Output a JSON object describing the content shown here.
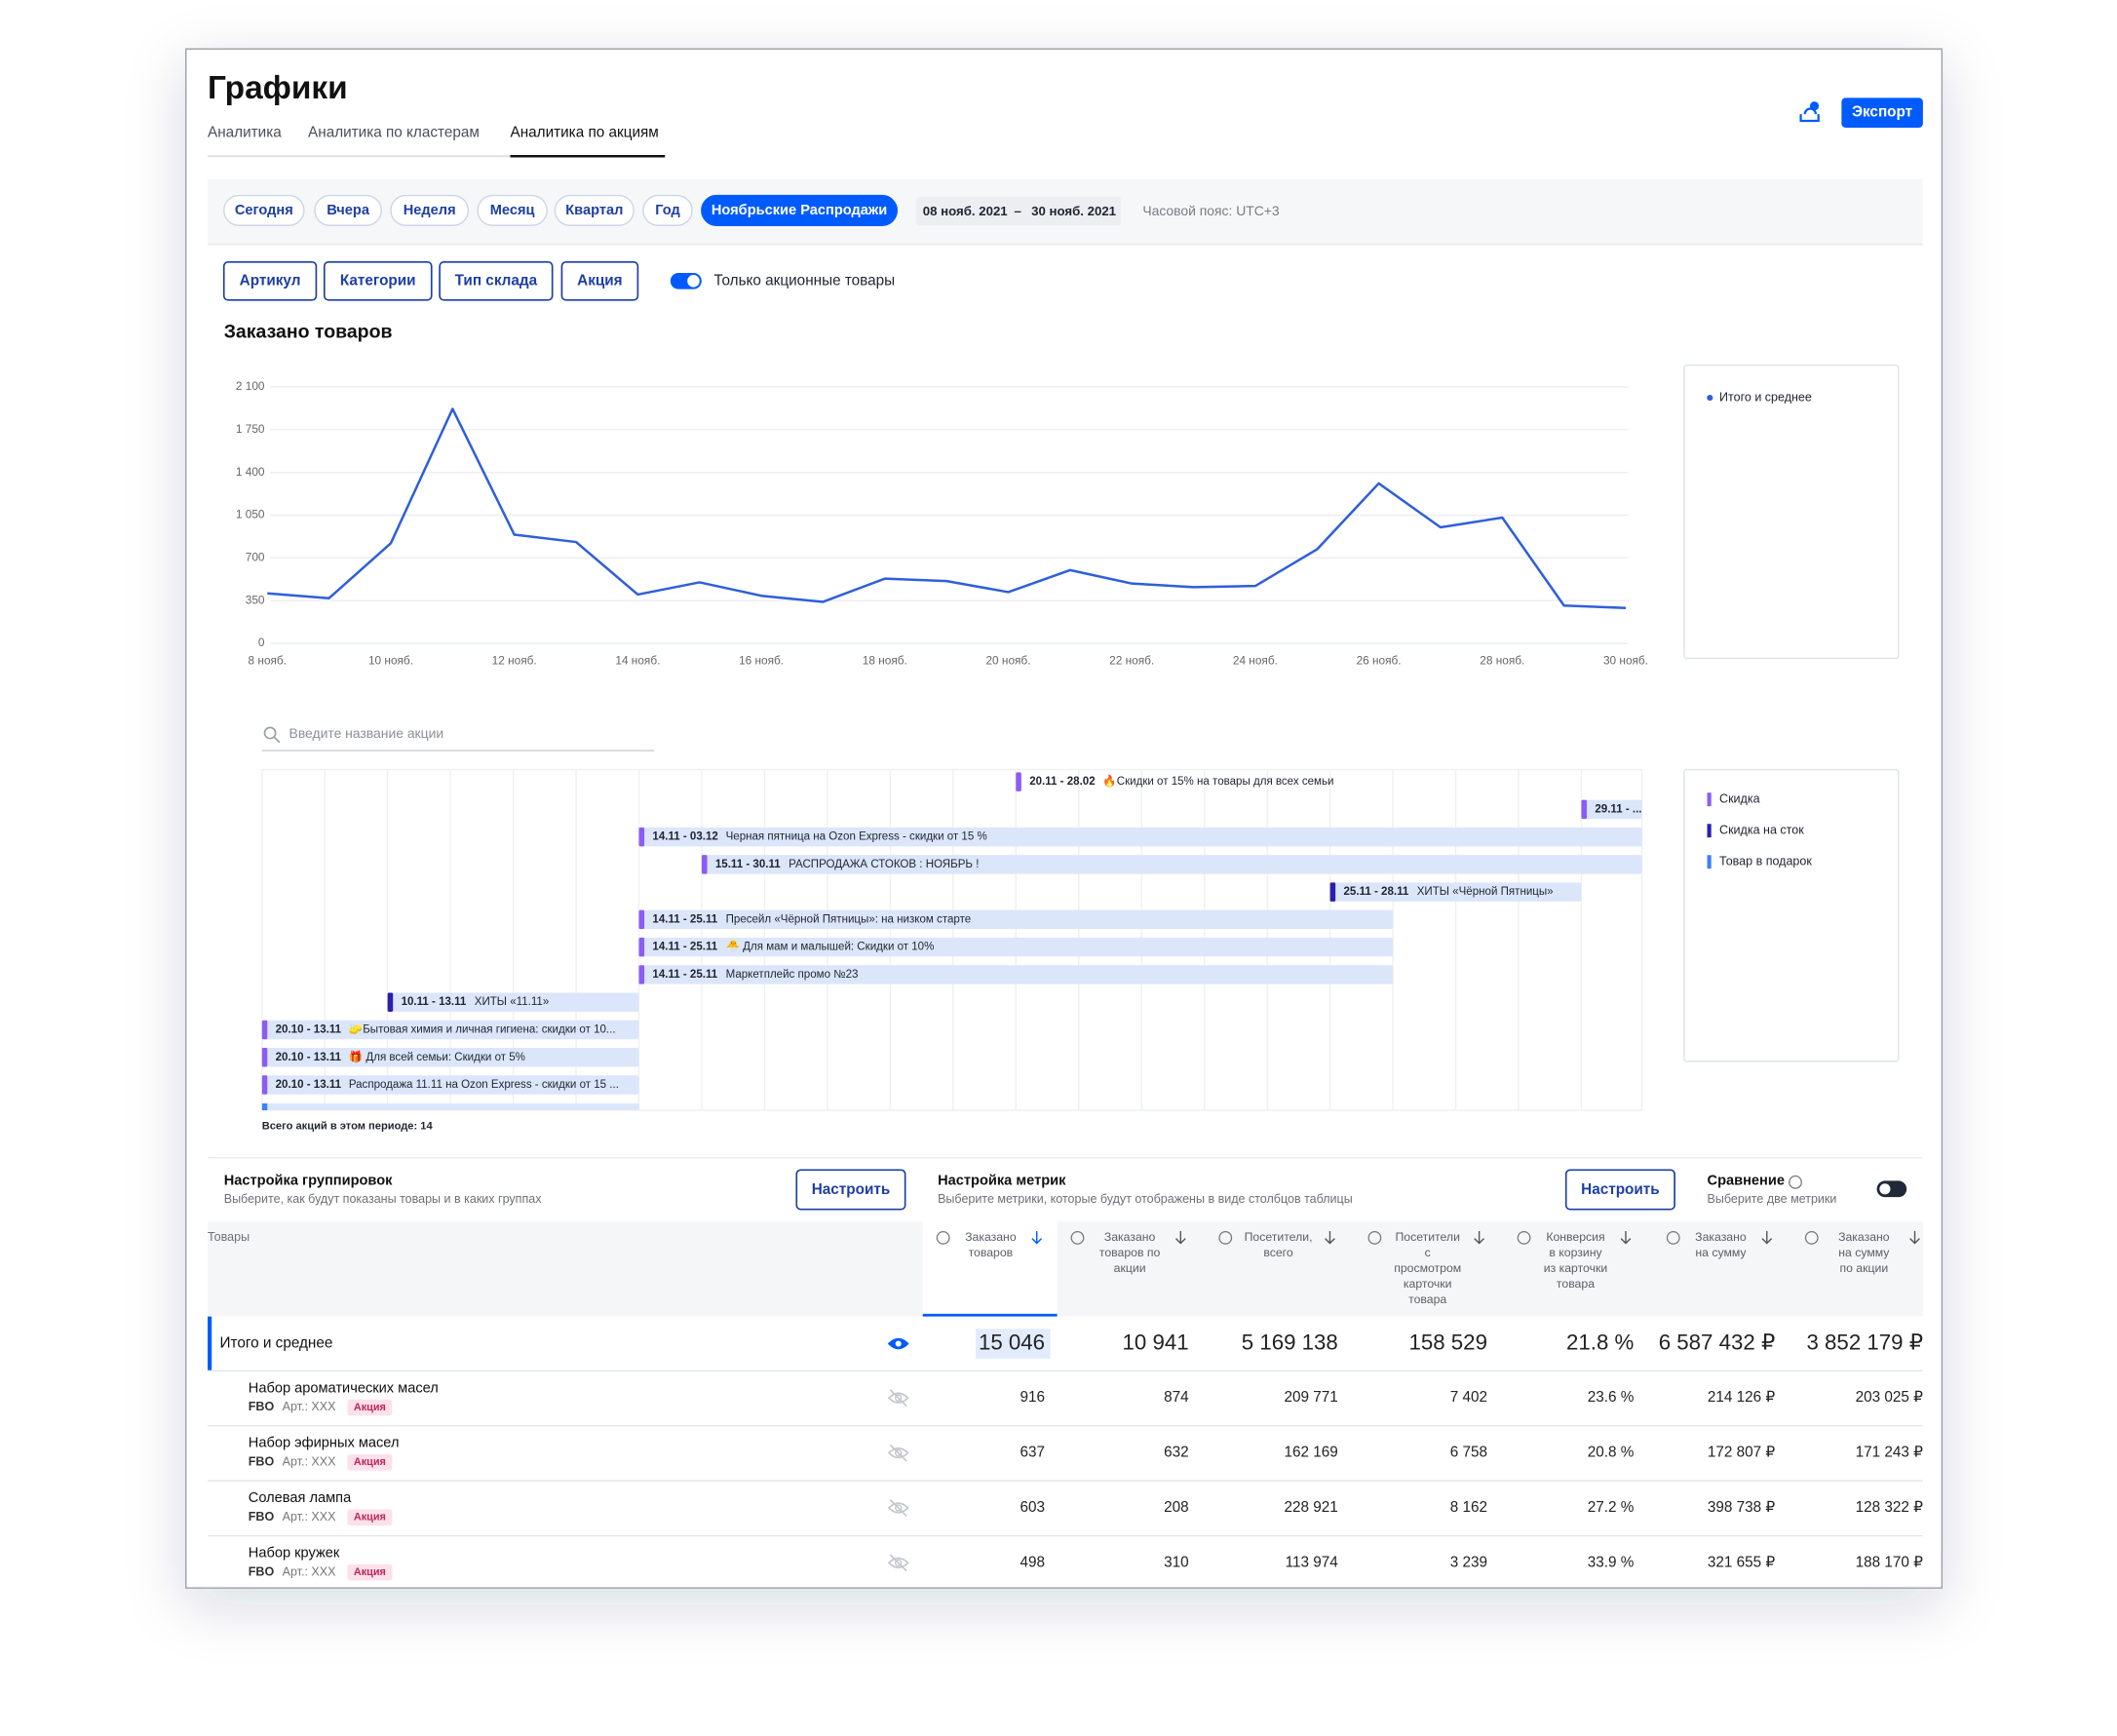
{
  "header": {
    "title": "Графики",
    "tabs": [
      "Аналитика",
      "Аналитика по кластерам",
      "Аналитика по акциям"
    ],
    "export": "Экспорт"
  },
  "periods": [
    "Сегодня",
    "Вчера",
    "Неделя",
    "Месяц",
    "Квартал",
    "Год",
    "Ноябрьские Распродажи"
  ],
  "date_range": {
    "from": "08 нояб. 2021",
    "separator": "–",
    "to": "30 нояб. 2021"
  },
  "timezone": "Часовой пояс: UTC+3",
  "filters": [
    "Артикул",
    "Категории",
    "Тип склада",
    "Акция"
  ],
  "toggle_label": "Только акционные товары",
  "chart_data": {
    "type": "line",
    "title": "Заказано товаров",
    "categories": [
      "8 нояб.",
      null,
      "10 нояб.",
      null,
      "12 нояб.",
      null,
      "14 нояб.",
      null,
      "16 нояб.",
      null,
      "18 нояб.",
      null,
      "20 нояб.",
      null,
      "22 нояб.",
      null,
      "24 нояб.",
      null,
      "26 нояб.",
      null,
      "28 нояб.",
      null,
      "30 нояб."
    ],
    "series": [
      {
        "name": "Итого и среднее",
        "color": "#2f5fd9",
        "values": [
          410,
          370,
          820,
          1920,
          890,
          830,
          400,
          500,
          390,
          340,
          530,
          510,
          420,
          600,
          490,
          460,
          470,
          770,
          1310,
          950,
          1030,
          310,
          290
        ]
      }
    ],
    "ylim": [
      0,
      2100
    ],
    "yticks": [
      0,
      350,
      700,
      {
        "value": 1050,
        "label": "1 050"
      },
      {
        "value": 1400,
        "label": "1 400"
      },
      {
        "value": 1750,
        "label": "1 750"
      },
      {
        "value": 2100,
        "label": "2 100"
      }
    ],
    "grid": true
  },
  "promos": {
    "search_placeholder": "Введите название акции",
    "items": [
      {
        "dates": "20.11 - 28.02",
        "name": "🔥Скидки от 15% на товары для всех семьи",
        "color": "#8b5cf6"
      },
      {
        "dates": "29.11 - ...",
        "color": "#8b5cf6"
      },
      {
        "dates": "14.11 - 03.12",
        "name": "Черная пятница на Ozon Express - скидки от 15 %",
        "color": "#8b5cf6"
      },
      {
        "dates": "15.11 - 30.11",
        "name": "РАСПРОДАЖА СТОКОВ : НОЯБРЬ !",
        "color": "#8b5cf6"
      },
      {
        "dates": "25.11 - 28.11",
        "name": "ХИТЫ «Чёрной Пятницы»",
        "color": "#2a1fb0"
      },
      {
        "dates": "14.11 - 25.11",
        "name": "Пресейл «Чёрной Пятницы»: на низком старте",
        "color": "#8b5cf6"
      },
      {
        "dates": "14.11 - 25.11",
        "name": "🐣 Для мам и малышей: Скидки от 10%",
        "color": "#8b5cf6"
      },
      {
        "dates": "14.11 - 25.11",
        "name": "Маркетплейс промо №23",
        "color": "#8b5cf6"
      },
      {
        "dates": "10.11 - 13.11",
        "name": "ХИТЫ «11.11»",
        "color": "#2a1fb0"
      },
      {
        "dates": "20.10 - 13.11",
        "name": "🧽Бытовая химия и личная гигиена: скидки от 10...",
        "color": "#8b5cf6"
      },
      {
        "dates": "20.10 - 13.11",
        "name": "🎁 Для всей семьи: Скидки от 5%",
        "color": "#8b5cf6"
      },
      {
        "dates": "20.10 - 13.11",
        "name": "Распродажа 11.11 на Ozon Express - скидки от 15 ...",
        "color": "#8b5cf6"
      }
    ],
    "legend": [
      {
        "name": "Скидка",
        "color": "#8b5cf6"
      },
      {
        "name": "Скидка на сток",
        "color": "#2a1fb0"
      },
      {
        "name": "Товар в подарок",
        "color": "#3b82f6"
      }
    ],
    "total": "Всего акций в этом периоде: 14"
  },
  "settings": {
    "grouping": {
      "title": "Настройка группировок",
      "subtitle": "Выберите, как будут показаны товары и в каких группах",
      "button": "Настроить"
    },
    "metrics": {
      "title": "Настройка метрик",
      "subtitle": "Выберите метрики, которые будут отображены в виде столбцов таблицы",
      "button": "Настроить"
    },
    "comparison": {
      "title": "Сравнение",
      "subtitle": "Выберите две метрики"
    }
  },
  "table": {
    "first_header": "Товары",
    "headers": [
      [
        "Заказано",
        "товаров"
      ],
      [
        "Заказано",
        "товаров по",
        "акции"
      ],
      [
        "Посетители,",
        "всего"
      ],
      [
        "Посетители",
        "с",
        "просмотром",
        "карточки",
        "товара"
      ],
      [
        "Конверсия",
        "в корзину",
        "из карточки",
        "товара"
      ],
      [
        "Заказано",
        "на сумму"
      ],
      [
        "Заказано",
        "на сумму",
        "по акции"
      ]
    ],
    "total": {
      "name": "Итого и среднее",
      "values": [
        "15 046",
        "10 941",
        "5 169 138",
        "158 529",
        "21.8 %",
        "6 587 432 ₽",
        "3 852 179 ₽"
      ]
    },
    "rows": [
      {
        "name": "Набор ароматических масел",
        "warehouse": "FBO",
        "sku": "Арт.: XXX",
        "badge": "Акция",
        "values": [
          "916",
          "874",
          "209 771",
          "7 402",
          "23.6 %",
          "214 126 ₽",
          "203 025 ₽"
        ]
      },
      {
        "name": "Набор эфирных масел",
        "warehouse": "FBO",
        "sku": "Арт.: XXX",
        "badge": "Акция",
        "values": [
          "637",
          "632",
          "162 169",
          "6 758",
          "20.8 %",
          "172 807 ₽",
          "171 243 ₽"
        ]
      },
      {
        "name": "Солевая лампа",
        "warehouse": "FBO",
        "sku": "Арт.: XXX",
        "badge": "Акция",
        "values": [
          "603",
          "208",
          "228 921",
          "8 162",
          "27.2 %",
          "398 738 ₽",
          "128 322 ₽"
        ]
      },
      {
        "name": "Набор кружек",
        "warehouse": "FBO",
        "sku": "Арт.: XXX",
        "badge": "Акция",
        "values": [
          "498",
          "310",
          "113 974",
          "3 239",
          "33.9 %",
          "321 655 ₽",
          "188 170 ₽"
        ]
      }
    ]
  }
}
